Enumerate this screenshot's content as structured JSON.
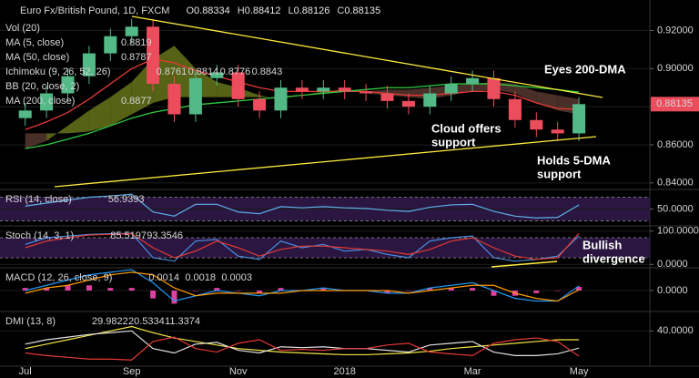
{
  "chart_data": [
    {
      "type": "candlestick",
      "title": "Euro Fx/British Pound, 1D, FXCM",
      "header": {
        "labels": [
          "O",
          "H",
          "L",
          "C"
        ],
        "values": [
          0.88334,
          0.88412,
          0.88126,
          0.88135
        ]
      },
      "categories": [
        "Jul",
        null,
        null,
        null,
        null,
        "Sep",
        null,
        null,
        null,
        null,
        "Nov",
        null,
        null,
        null,
        null,
        "2018",
        null,
        null,
        null,
        null,
        null,
        "Mar",
        null,
        null,
        null,
        null,
        "May"
      ],
      "open": [
        0.874,
        0.878,
        0.887,
        0.896,
        0.908,
        0.917,
        0.922,
        0.892,
        0.876,
        0.895,
        0.898,
        0.884,
        0.878,
        0.89,
        0.888,
        0.89,
        0.888,
        0.887,
        0.883,
        0.88,
        0.887,
        0.892,
        0.895,
        0.884,
        0.873,
        0.868,
        0.866
      ],
      "high": [
        0.882,
        0.891,
        0.9,
        0.912,
        0.921,
        0.926,
        0.926,
        0.896,
        0.899,
        0.902,
        0.902,
        0.888,
        0.894,
        0.894,
        0.894,
        0.894,
        0.892,
        0.891,
        0.887,
        0.891,
        0.896,
        0.899,
        0.899,
        0.888,
        0.877,
        0.872,
        0.885
      ],
      "low": [
        0.87,
        0.874,
        0.883,
        0.892,
        0.904,
        0.913,
        0.888,
        0.872,
        0.872,
        0.891,
        0.88,
        0.874,
        0.874,
        0.884,
        0.884,
        0.884,
        0.883,
        0.879,
        0.876,
        0.876,
        0.883,
        0.888,
        0.88,
        0.869,
        0.864,
        0.862,
        0.862
      ],
      "close": [
        0.878,
        0.887,
        0.896,
        0.908,
        0.917,
        0.922,
        0.892,
        0.876,
        0.895,
        0.898,
        0.884,
        0.878,
        0.89,
        0.888,
        0.89,
        0.888,
        0.887,
        0.883,
        0.88,
        0.887,
        0.892,
        0.895,
        0.884,
        0.873,
        0.868,
        0.866,
        0.88135
      ],
      "up_color": "#53b987",
      "down_color": "#eb4d5c",
      "indicators": [
        {
          "name": "Vol (20)"
        },
        {
          "name": "MA (5, close)",
          "readouts": [
            0.8819
          ],
          "readout_colors": [
            "#f0e442"
          ]
        },
        {
          "name": "MA (50, close)",
          "color": "#e53935",
          "values": [
            0.868,
            0.872,
            0.877,
            0.884,
            0.892,
            0.9,
            0.905,
            0.903,
            0.899,
            0.896,
            0.893,
            0.89,
            0.888,
            0.888,
            0.888,
            0.888,
            0.888,
            0.887,
            0.886,
            0.886,
            0.887,
            0.888,
            0.888,
            0.886,
            0.882,
            0.879,
            0.8787
          ]
        },
        {
          "name": "Ichimoku (9, 26, 52, 26)",
          "readouts": [
            0.8761,
            0.8814,
            0.8776,
            0.8843
          ],
          "readout_colors": [
            "#2196f3",
            "#4caf50",
            "#8bc34a",
            "#e53935"
          ],
          "span_a": [
            0.858,
            0.862,
            0.87,
            0.878,
            0.885,
            0.893,
            0.905,
            0.912,
            0.9,
            0.893,
            0.89,
            0.886,
            0.884,
            0.886,
            0.888,
            0.889,
            0.887,
            0.886,
            0.885,
            0.884,
            0.886,
            0.888,
            0.889,
            0.887,
            0.882,
            0.878,
            0.876
          ],
          "span_b": [
            0.866,
            0.866,
            0.866,
            0.867,
            0.87,
            0.876,
            0.882,
            0.885,
            0.885,
            0.885,
            0.885,
            0.885,
            0.885,
            0.886,
            0.887,
            0.888,
            0.888,
            0.889,
            0.889,
            0.89,
            0.891,
            0.892,
            0.893,
            0.892,
            0.888,
            0.886,
            0.884
          ],
          "cloud_colors": [
            "#6b7a1c",
            "#5c3b33"
          ]
        },
        {
          "name": "BB (20, close, 2)"
        },
        {
          "name": "MA (200, close)",
          "color": "#2ecc40",
          "values": [
            0.858,
            0.86,
            0.863,
            0.866,
            0.87,
            0.874,
            0.877,
            0.879,
            0.881,
            0.882,
            0.883,
            0.884,
            0.885,
            0.886,
            0.887,
            0.888,
            0.889,
            0.89,
            0.89,
            0.891,
            0.892,
            0.892,
            0.892,
            0.891,
            0.89,
            0.889,
            0.8877
          ]
        }
      ],
      "annotations": [
        {
          "lines": [
            "Eyes 200-DMA"
          ]
        },
        {
          "lines": [
            "Cloud offers",
            "support"
          ]
        },
        {
          "lines": [
            "Holds 5-DMA",
            "support"
          ]
        },
        {
          "lines": [
            "Bullish",
            "divergence"
          ]
        }
      ],
      "ylim": [
        0.838,
        0.936
      ],
      "yticks": [
        {
          "value": 0.84,
          "label": "0.84000"
        },
        {
          "value": 0.86,
          "label": "0.86000"
        },
        {
          "value": 0.88,
          "label": "0.88000"
        },
        {
          "value": 0.9,
          "label": "0.90000"
        },
        {
          "value": 0.92,
          "label": "0.92000"
        }
      ]
    },
    {
      "type": "line",
      "label": "RSI (14, close)",
      "ylim": [
        20,
        80
      ],
      "yticks": [
        {
          "value": 50,
          "label": "50.0000"
        }
      ],
      "band": [
        30,
        70
      ],
      "band_color": "#2a1640",
      "series": [
        {
          "color": "#5fb0e8",
          "values": [
            55,
            60,
            65,
            70,
            72,
            75,
            45,
            38,
            58,
            58,
            45,
            42,
            54,
            52,
            54,
            52,
            51,
            48,
            46,
            53,
            57,
            58,
            46,
            38,
            35,
            36,
            56.9393
          ]
        }
      ]
    },
    {
      "type": "line",
      "label": "Stoch (14, 3, 1)",
      "ylim": [
        -10,
        110
      ],
      "yticks": [
        {
          "value": 100,
          "label": "100.0000"
        },
        {
          "value": 0,
          "label": "0.0000"
        }
      ],
      "band": [
        20,
        80
      ],
      "band_color": "#2a1640",
      "series": [
        {
          "color": "#4a8fe0",
          "values": [
            60,
            80,
            85,
            90,
            92,
            93,
            20,
            10,
            70,
            75,
            25,
            15,
            70,
            50,
            60,
            40,
            45,
            30,
            20,
            70,
            80,
            85,
            20,
            10,
            15,
            25,
            85.5197
          ]
        },
        {
          "color": "#e53935",
          "values": [
            50,
            70,
            80,
            88,
            90,
            92,
            50,
            20,
            40,
            70,
            50,
            25,
            45,
            55,
            55,
            50,
            45,
            40,
            30,
            45,
            70,
            80,
            50,
            25,
            15,
            20,
            93.3546
          ]
        }
      ]
    },
    {
      "type": "line",
      "label": "MACD (12, 26, close, 9)",
      "ylim": [
        -0.008,
        0.008
      ],
      "yticks": [
        {
          "value": 0,
          "label": "0.0000"
        }
      ],
      "series": [
        {
          "color": "#e040a0",
          "style": "bars",
          "values": [
            0.001,
            0.001,
            0.002,
            0.002,
            0.001,
            0.001,
            -0.003,
            -0.005,
            0,
            0.001,
            0,
            -0.001,
            0.001,
            0,
            0.001,
            0,
            0,
            -0.001,
            0,
            0.001,
            0.001,
            0.001,
            -0.002,
            -0.002,
            -0.001,
            0,
            0.0014
          ]
        },
        {
          "color": "#2196f3",
          "values": [
            0,
            0.002,
            0.004,
            0.006,
            0.007,
            0.008,
            0.003,
            -0.004,
            -0.002,
            0,
            -0.001,
            -0.002,
            0,
            0,
            0.001,
            0,
            0,
            -0.001,
            -0.001,
            0.001,
            0.002,
            0.003,
            0,
            -0.003,
            -0.004,
            -0.004,
            0.0018
          ]
        },
        {
          "color": "#ff9800",
          "values": [
            -0.001,
            0.001,
            0.002,
            0.004,
            0.006,
            0.007,
            0.006,
            0.001,
            -0.002,
            -0.001,
            -0.001,
            -0.001,
            -0.001,
            0,
            0,
            0,
            0,
            0,
            -0.001,
            0,
            0.001,
            0.002,
            0.002,
            -0.001,
            -0.003,
            -0.004,
            0.0003
          ]
        }
      ]
    },
    {
      "type": "line",
      "label": "DMI (13, 8)",
      "ylim": [
        0,
        60
      ],
      "yticks": [
        {
          "value": 40,
          "label": "40.0000"
        }
      ],
      "series": [
        {
          "color": "#f0e442",
          "values": [
            20,
            25,
            30,
            35,
            40,
            45,
            38,
            32,
            28,
            24,
            20,
            18,
            16,
            15,
            14,
            13,
            13,
            14,
            15,
            17,
            20,
            22,
            24,
            26,
            28,
            30,
            29.9822
          ]
        },
        {
          "color": "#e0e0e0",
          "values": [
            25,
            30,
            33,
            36,
            38,
            40,
            20,
            15,
            25,
            27,
            18,
            15,
            22,
            21,
            22,
            20,
            20,
            18,
            16,
            24,
            26,
            28,
            16,
            12,
            12,
            14,
            20.5334
          ]
        },
        {
          "color": "#e53935",
          "values": [
            15,
            12,
            10,
            8,
            8,
            7,
            28,
            33,
            20,
            16,
            26,
            30,
            18,
            19,
            18,
            20,
            20,
            24,
            26,
            16,
            14,
            12,
            26,
            30,
            32,
            28,
            11.3374
          ]
        }
      ]
    }
  ]
}
